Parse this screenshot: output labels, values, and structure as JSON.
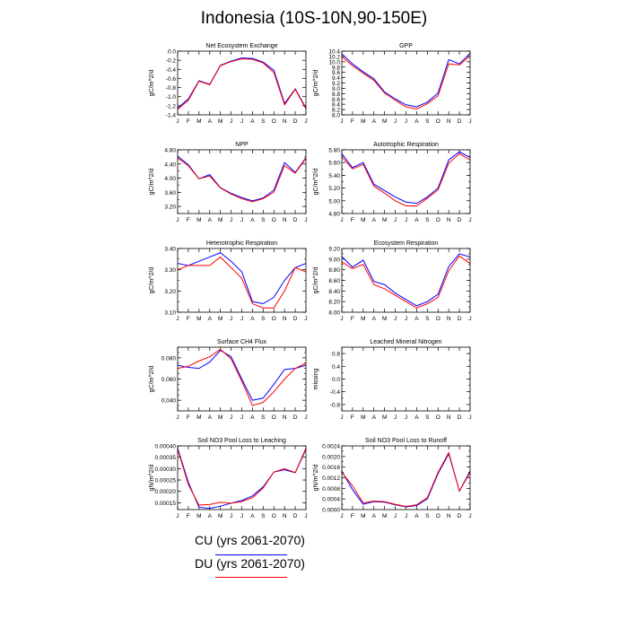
{
  "figure": {
    "title": "Indonesia (10S-10N,90-150E)"
  },
  "legend": [
    {
      "label": "CU (yrs 2061-2070)",
      "color": "#0000ff"
    },
    {
      "label": "DU (yrs 2061-2070)",
      "color": "#ff0000"
    }
  ],
  "chart_data": [
    {
      "type": "line",
      "title": "Net Ecosystem Exchange",
      "ylabel": "gC/m^2/d",
      "categories": [
        "J",
        "F",
        "M",
        "A",
        "M",
        "J",
        "J",
        "A",
        "S",
        "O",
        "N",
        "D",
        "J"
      ],
      "ylim": [
        -1.4,
        0.0
      ],
      "yticks": [
        0.0,
        -0.2,
        -0.4,
        -0.6,
        -0.8,
        -1.0,
        -1.2,
        -1.4
      ],
      "ytick_labels": [
        "0.0",
        "-0.2",
        "-0.4",
        "-0.6",
        "-0.8",
        "-1.0",
        "-1.2",
        "-1.4"
      ],
      "series": [
        {
          "name": "CU (yrs 2061-2070)",
          "color": "#0000ff",
          "values": [
            -1.25,
            -1.05,
            -0.65,
            -0.73,
            -0.31,
            -0.22,
            -0.15,
            -0.16,
            -0.24,
            -0.42,
            -1.15,
            -0.83,
            -1.25
          ]
        },
        {
          "name": "DU (yrs 2061-2070)",
          "color": "#ff0000",
          "values": [
            -1.28,
            -1.08,
            -0.66,
            -0.74,
            -0.32,
            -0.23,
            -0.17,
            -0.18,
            -0.26,
            -0.47,
            -1.18,
            -0.84,
            -1.27
          ]
        }
      ]
    },
    {
      "type": "line",
      "title": "GPP",
      "ylabel": "gC/m^2/d",
      "categories": [
        "J",
        "F",
        "M",
        "A",
        "M",
        "J",
        "J",
        "A",
        "S",
        "O",
        "N",
        "D",
        "J"
      ],
      "ylim": [
        8.0,
        10.4
      ],
      "yticks": [
        10.4,
        10.0,
        9.6,
        9.2,
        8.8,
        8.4,
        8.0
      ],
      "ytick_labels": [
        "10.4",
        "10.2",
        "10.0",
        "9.8",
        "9.6",
        "9.4",
        "9.2",
        "9.0",
        "8.8",
        "8.6",
        "8.4",
        "8.2",
        "8.0"
      ],
      "yticks_all": [
        10.4,
        10.2,
        10.0,
        9.8,
        9.6,
        9.4,
        9.2,
        9.0,
        8.8,
        8.6,
        8.4,
        8.2,
        8.0
      ],
      "series": [
        {
          "name": "CU (yrs 2061-2070)",
          "color": "#0000ff",
          "values": [
            10.3,
            9.92,
            9.62,
            9.36,
            8.86,
            8.6,
            8.38,
            8.3,
            8.48,
            8.82,
            10.08,
            9.92,
            10.32
          ]
        },
        {
          "name": "DU (yrs 2061-2070)",
          "color": "#ff0000",
          "values": [
            10.2,
            9.85,
            9.57,
            9.3,
            8.82,
            8.55,
            8.3,
            8.22,
            8.42,
            8.72,
            9.92,
            9.88,
            10.22
          ]
        }
      ]
    },
    {
      "type": "line",
      "title": "NPP",
      "ylabel": "gC/m^2/d",
      "categories": [
        "J",
        "F",
        "M",
        "A",
        "M",
        "J",
        "J",
        "A",
        "S",
        "O",
        "N",
        "D",
        "J"
      ],
      "ylim": [
        3.0,
        4.8
      ],
      "yticks_all": [
        4.8,
        4.6,
        4.4,
        4.2,
        4.0,
        3.8,
        3.6,
        3.4,
        3.2,
        3.0
      ],
      "ytick_labels": [
        "4.80",
        "4.40",
        "4.00",
        "3.60",
        "3.20"
      ],
      "series": [
        {
          "name": "CU (yrs 2061-2070)",
          "color": "#0000ff",
          "values": [
            4.62,
            4.38,
            3.98,
            4.1,
            3.73,
            3.57,
            3.45,
            3.36,
            3.44,
            3.66,
            4.44,
            4.16,
            4.58
          ]
        },
        {
          "name": "DU (yrs 2061-2070)",
          "color": "#ff0000",
          "values": [
            4.57,
            4.35,
            3.98,
            4.06,
            3.72,
            3.55,
            3.42,
            3.33,
            3.42,
            3.6,
            4.35,
            4.14,
            4.56
          ]
        }
      ]
    },
    {
      "type": "line",
      "title": "Autotrophic Respiration",
      "ylabel": "gC/m^2/d",
      "categories": [
        "J",
        "F",
        "M",
        "A",
        "M",
        "J",
        "J",
        "A",
        "S",
        "O",
        "N",
        "D",
        "J"
      ],
      "ylim": [
        4.8,
        5.8
      ],
      "yticks_all": [
        5.8,
        5.7,
        5.6,
        5.5,
        5.4,
        5.3,
        5.2,
        5.1,
        5.0,
        4.9,
        4.8
      ],
      "ytick_labels": [
        "5.80",
        "5.60",
        "5.40",
        "5.20",
        "5.00",
        "4.80"
      ],
      "series": [
        {
          "name": "CU (yrs 2061-2070)",
          "color": "#0000ff",
          "values": [
            5.74,
            5.52,
            5.6,
            5.26,
            5.16,
            5.06,
            4.98,
            4.96,
            5.06,
            5.2,
            5.64,
            5.77,
            5.68
          ]
        },
        {
          "name": "DU (yrs 2061-2070)",
          "color": "#ff0000",
          "values": [
            5.69,
            5.5,
            5.57,
            5.23,
            5.12,
            5.0,
            4.92,
            4.92,
            5.04,
            5.17,
            5.59,
            5.74,
            5.64
          ]
        }
      ]
    },
    {
      "type": "line",
      "title": "Heterotrophic Respiration",
      "ylabel": "gC/m^2/d",
      "categories": [
        "J",
        "F",
        "M",
        "A",
        "M",
        "J",
        "J",
        "A",
        "S",
        "O",
        "N",
        "D",
        "J"
      ],
      "ylim": [
        3.1,
        3.4
      ],
      "yticks_all": [
        3.4,
        3.35,
        3.3,
        3.25,
        3.2,
        3.15,
        3.1
      ],
      "ytick_labels": [
        "3.40",
        "3.30",
        "3.20",
        "3.10"
      ],
      "series": [
        {
          "name": "CU (yrs 2061-2070)",
          "color": "#0000ff",
          "values": [
            3.33,
            3.32,
            3.34,
            3.36,
            3.38,
            3.34,
            3.29,
            3.15,
            3.14,
            3.17,
            3.25,
            3.31,
            3.33
          ]
        },
        {
          "name": "DU (yrs 2061-2070)",
          "color": "#ff0000",
          "values": [
            3.3,
            3.32,
            3.32,
            3.32,
            3.36,
            3.31,
            3.26,
            3.14,
            3.12,
            3.12,
            3.2,
            3.31,
            3.29
          ]
        }
      ]
    },
    {
      "type": "line",
      "title": "Ecosystem Respiration",
      "ylabel": "gC/m^2/d",
      "categories": [
        "J",
        "F",
        "M",
        "A",
        "M",
        "J",
        "J",
        "A",
        "S",
        "O",
        "N",
        "D",
        "J"
      ],
      "ylim": [
        8.0,
        9.2
      ],
      "yticks_all": [
        9.2,
        9.1,
        9.0,
        8.9,
        8.8,
        8.7,
        8.6,
        8.5,
        8.4,
        8.3,
        8.2,
        8.1,
        8.0
      ],
      "ytick_labels": [
        "9.20",
        "9.00",
        "8.80",
        "8.60",
        "8.40",
        "8.20",
        "8.00"
      ],
      "series": [
        {
          "name": "CU (yrs 2061-2070)",
          "color": "#0000ff",
          "values": [
            9.05,
            8.85,
            8.98,
            8.58,
            8.52,
            8.36,
            8.24,
            8.12,
            8.2,
            8.34,
            8.86,
            9.1,
            9.04
          ]
        },
        {
          "name": "DU (yrs 2061-2070)",
          "color": "#ff0000",
          "values": [
            8.95,
            8.82,
            8.9,
            8.52,
            8.44,
            8.32,
            8.2,
            8.08,
            8.16,
            8.28,
            8.78,
            9.06,
            8.92
          ]
        }
      ]
    },
    {
      "type": "line",
      "title": "Surface CH4 Flux",
      "ylabel": "gC/m^2/d",
      "categories": [
        "J",
        "F",
        "M",
        "A",
        "M",
        "J",
        "J",
        "A",
        "S",
        "O",
        "N",
        "D",
        "J"
      ],
      "ylim": [
        0.03,
        0.09
      ],
      "yticks_all": [
        0.09,
        0.085,
        0.08,
        0.075,
        0.07,
        0.065,
        0.06,
        0.055,
        0.05,
        0.045,
        0.04,
        0.035,
        0.03
      ],
      "ytick_labels": [
        "0.080",
        "0.060",
        "0.040"
      ],
      "series": [
        {
          "name": "CU (yrs 2061-2070)",
          "color": "#0000ff",
          "values": [
            0.073,
            0.071,
            0.07,
            0.076,
            0.087,
            0.081,
            0.06,
            0.04,
            0.042,
            0.055,
            0.069,
            0.07,
            0.073
          ]
        },
        {
          "name": "DU (yrs 2061-2070)",
          "color": "#ff0000",
          "values": [
            0.07,
            0.072,
            0.077,
            0.081,
            0.088,
            0.079,
            0.058,
            0.035,
            0.038,
            0.048,
            0.06,
            0.07,
            0.075
          ]
        }
      ]
    },
    {
      "type": "line",
      "title": "Leached Mineral Nitrogen",
      "ylabel": "missing",
      "categories": [
        "J",
        "F",
        "M",
        "A",
        "M",
        "J",
        "J",
        "A",
        "S",
        "O",
        "N",
        "D",
        "J"
      ],
      "ylim": [
        -1.0,
        1.0
      ],
      "yticks_all": [
        1.0,
        0.8,
        0.6,
        0.4,
        0.2,
        0.0,
        -0.2,
        -0.4,
        -0.6,
        -0.8,
        -1.0
      ],
      "ytick_labels": [
        "0.8",
        "0.4",
        "0.0",
        "-0.4",
        "-0.8"
      ],
      "series": []
    },
    {
      "type": "line",
      "title": "Soil NO3 Pool Loss to Leaching",
      "ylabel": "gN/m^2/d",
      "categories": [
        "J",
        "F",
        "M",
        "A",
        "M",
        "J",
        "J",
        "A",
        "S",
        "O",
        "N",
        "D",
        "J"
      ],
      "ylim": [
        0.00012,
        0.0004
      ],
      "yticks_all": [
        0.0004,
        0.00035,
        0.0003,
        0.00025,
        0.0002,
        0.00015
      ],
      "ytick_labels": [
        "0.00040",
        "0.00035",
        "0.00030",
        "0.00025",
        "0.00020",
        "0.00015"
      ],
      "series": [
        {
          "name": "CU (yrs 2061-2070)",
          "color": "#0000ff",
          "values": [
            0.00039,
            0.00024,
            0.00013,
            0.000125,
            0.000135,
            0.000148,
            0.00016,
            0.00018,
            0.00022,
            0.000285,
            0.000295,
            0.000282,
            0.000385
          ]
        },
        {
          "name": "DU (yrs 2061-2070)",
          "color": "#ff0000",
          "values": [
            0.000385,
            0.00023,
            0.00014,
            0.000142,
            0.000152,
            0.000148,
            0.000155,
            0.000172,
            0.000215,
            0.000285,
            0.0003,
            0.000283,
            0.00039
          ]
        }
      ]
    },
    {
      "type": "line",
      "title": "Soil NO3 Pool Loss to Runoff",
      "ylabel": "gN/m^2/d",
      "categories": [
        "J",
        "F",
        "M",
        "A",
        "M",
        "J",
        "J",
        "A",
        "S",
        "O",
        "N",
        "D",
        "J"
      ],
      "ylim": [
        0.0,
        0.0024
      ],
      "yticks_all": [
        0.0024,
        0.0022,
        0.002,
        0.0018,
        0.0016,
        0.0014,
        0.0012,
        0.001,
        0.0008,
        0.0006,
        0.0004,
        0.0002,
        0.0
      ],
      "ytick_labels": [
        "0.0024",
        "0.0020",
        "0.0016",
        "0.0012",
        "0.0008",
        "0.0004",
        "0.0000"
      ],
      "series": [
        {
          "name": "CU (yrs 2061-2070)",
          "color": "#0000ff",
          "values": [
            0.00145,
            0.00075,
            0.0002,
            0.0003,
            0.00028,
            0.00018,
            0.0001,
            0.00015,
            0.0004,
            0.00135,
            0.0021,
            0.0007,
            0.00145
          ]
        },
        {
          "name": "DU (yrs 2061-2070)",
          "color": "#ff0000",
          "values": [
            0.0014,
            0.0009,
            0.00025,
            0.00032,
            0.0003,
            0.0002,
            0.00012,
            0.00018,
            0.00045,
            0.0014,
            0.00215,
            0.0007,
            0.0014
          ]
        }
      ]
    }
  ]
}
